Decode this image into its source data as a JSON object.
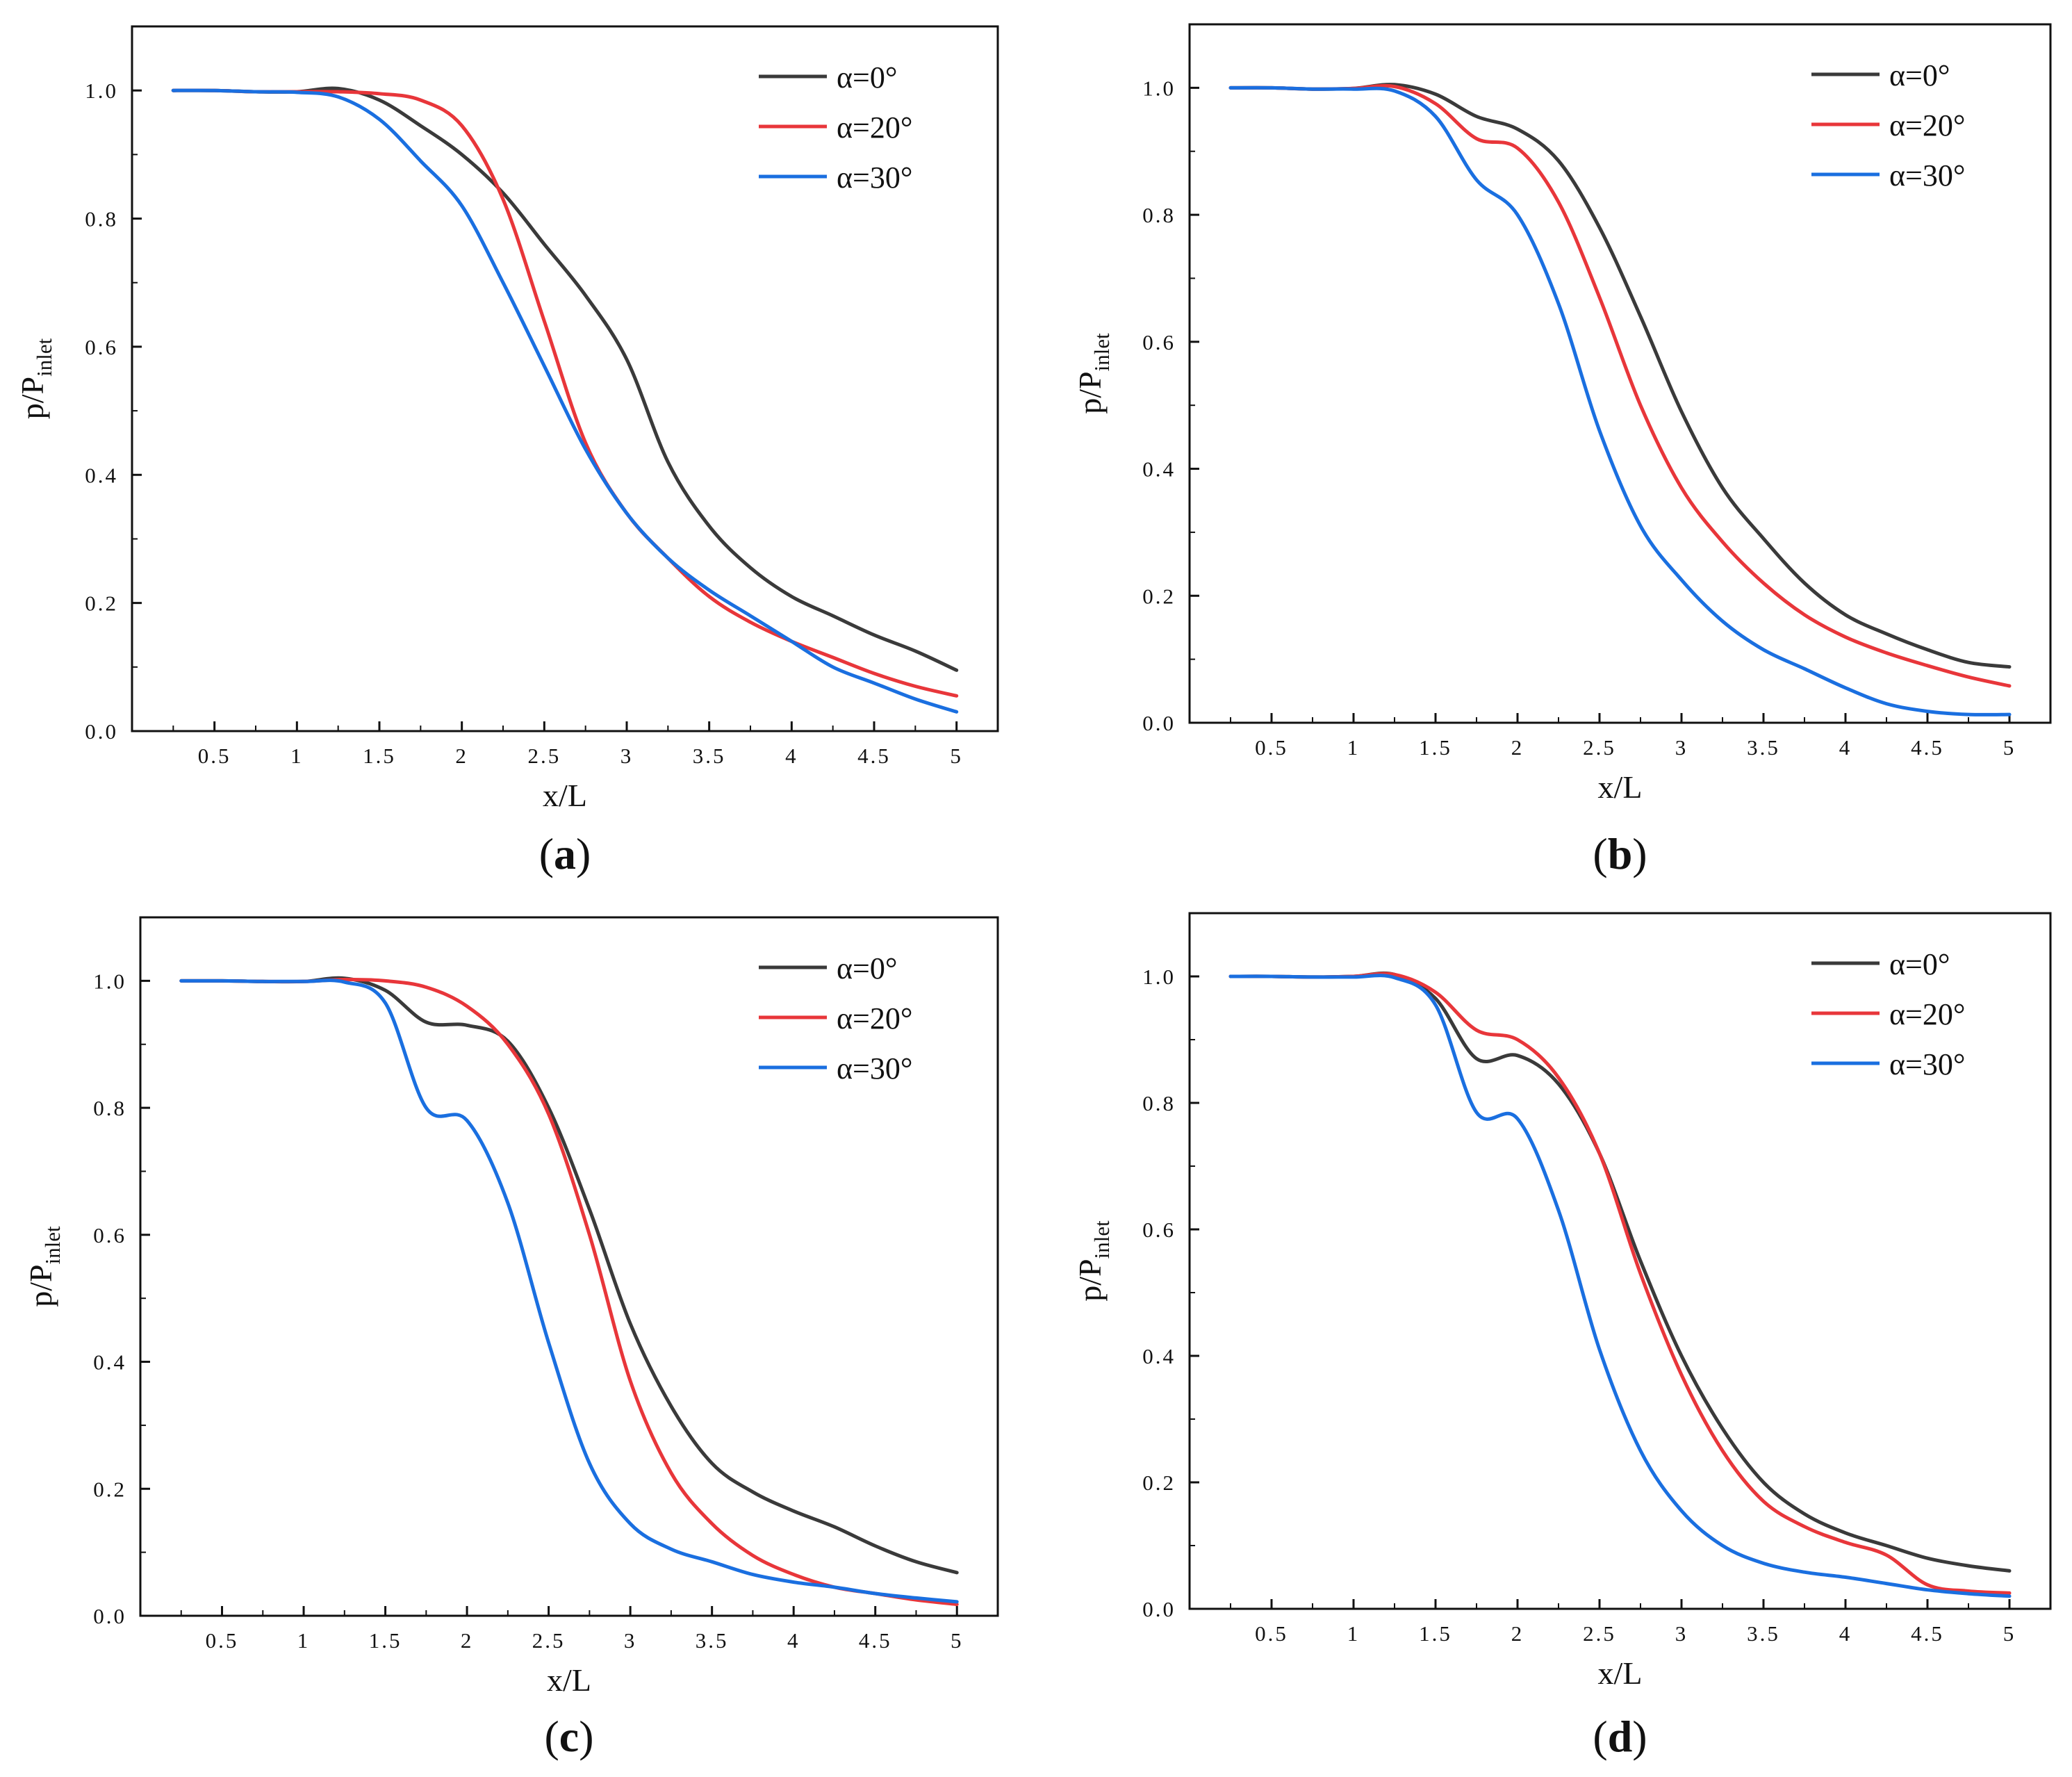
{
  "figure": {
    "panels": [
      {
        "label": "a"
      },
      {
        "label": "b"
      },
      {
        "label": "c"
      },
      {
        "label": "d"
      }
    ]
  },
  "chart_data": [
    {
      "type": "line",
      "panel": "a",
      "xlabel": "x/L",
      "ylabel": {
        "main": "p/P",
        "sub": "inlet"
      },
      "xlim": [
        0,
        5.25
      ],
      "ylim": [
        0,
        1.1
      ],
      "xticks": [
        "0.5",
        "1",
        "1.5",
        "2",
        "2.5",
        "3",
        "3.5",
        "4",
        "4.5",
        "5"
      ],
      "yticks": [
        "0.0",
        "0.2",
        "0.4",
        "0.6",
        "0.8",
        "1.0"
      ],
      "legend_position": "top-right",
      "grid": false,
      "series": [
        {
          "name": "α=0°",
          "color": "#3a3a3a",
          "x": [
            0.25,
            0.5,
            0.75,
            1.0,
            1.25,
            1.5,
            1.75,
            2.0,
            2.25,
            2.5,
            2.75,
            3.0,
            3.25,
            3.5,
            3.75,
            4.0,
            4.25,
            4.5,
            4.75,
            5.0
          ],
          "y": [
            1.0,
            1.0,
            0.998,
            0.998,
            1.003,
            0.985,
            0.945,
            0.9,
            0.84,
            0.76,
            0.68,
            0.58,
            0.42,
            0.32,
            0.255,
            0.21,
            0.18,
            0.15,
            0.125,
            0.095
          ]
        },
        {
          "name": "α=20°",
          "color": "#e8363a",
          "x": [
            0.25,
            0.5,
            0.75,
            1.0,
            1.25,
            1.5,
            1.75,
            2.0,
            2.25,
            2.5,
            2.75,
            3.0,
            3.25,
            3.5,
            3.75,
            4.0,
            4.25,
            4.5,
            4.75,
            5.0
          ],
          "y": [
            1.0,
            1.0,
            0.998,
            0.998,
            0.998,
            0.995,
            0.985,
            0.945,
            0.83,
            0.64,
            0.45,
            0.34,
            0.27,
            0.21,
            0.17,
            0.14,
            0.115,
            0.09,
            0.07,
            0.055
          ]
        },
        {
          "name": "α=30°",
          "color": "#1a6fe0",
          "x": [
            0.25,
            0.5,
            0.75,
            1.0,
            1.25,
            1.5,
            1.75,
            2.0,
            2.25,
            2.5,
            2.75,
            3.0,
            3.25,
            3.5,
            3.75,
            4.0,
            4.25,
            4.5,
            4.75,
            5.0
          ],
          "y": [
            1.0,
            1.0,
            0.998,
            0.997,
            0.99,
            0.955,
            0.89,
            0.82,
            0.7,
            0.57,
            0.44,
            0.34,
            0.27,
            0.22,
            0.18,
            0.14,
            0.1,
            0.075,
            0.05,
            0.03
          ]
        }
      ]
    },
    {
      "type": "line",
      "panel": "b",
      "xlabel": "x/L",
      "ylabel": {
        "main": "p/P",
        "sub": "inlet"
      },
      "xlim": [
        0,
        5.25
      ],
      "ylim": [
        0,
        1.1
      ],
      "xticks": [
        "0.5",
        "1",
        "1.5",
        "2",
        "2.5",
        "3",
        "3.5",
        "4",
        "4.5",
        "5"
      ],
      "yticks": [
        "0.0",
        "0.2",
        "0.4",
        "0.6",
        "0.8",
        "1.0"
      ],
      "legend_position": "top-right",
      "grid": false,
      "series": [
        {
          "name": "α=0°",
          "color": "#3a3a3a",
          "x": [
            0.25,
            0.5,
            0.75,
            1.0,
            1.25,
            1.5,
            1.75,
            2.0,
            2.25,
            2.5,
            2.75,
            3.0,
            3.25,
            3.5,
            3.75,
            4.0,
            4.25,
            4.5,
            4.75,
            5.0
          ],
          "y": [
            1.0,
            1.0,
            0.998,
            0.999,
            1.005,
            0.99,
            0.955,
            0.935,
            0.885,
            0.78,
            0.64,
            0.49,
            0.37,
            0.29,
            0.22,
            0.17,
            0.14,
            0.115,
            0.095,
            0.088
          ]
        },
        {
          "name": "α=20°",
          "color": "#e8363a",
          "x": [
            0.25,
            0.5,
            0.75,
            1.0,
            1.25,
            1.5,
            1.75,
            2.0,
            2.25,
            2.5,
            2.75,
            3.0,
            3.25,
            3.5,
            3.75,
            4.0,
            4.25,
            4.5,
            4.75,
            5.0
          ],
          "y": [
            1.0,
            1.0,
            0.998,
            0.999,
            1.002,
            0.975,
            0.92,
            0.905,
            0.82,
            0.67,
            0.5,
            0.37,
            0.285,
            0.22,
            0.17,
            0.135,
            0.11,
            0.09,
            0.072,
            0.058
          ]
        },
        {
          "name": "α=30°",
          "color": "#1a6fe0",
          "x": [
            0.25,
            0.5,
            0.75,
            1.0,
            1.25,
            1.5,
            1.75,
            2.0,
            2.25,
            2.5,
            2.75,
            3.0,
            3.25,
            3.5,
            3.75,
            4.0,
            4.25,
            4.5,
            4.75,
            5.0
          ],
          "y": [
            1.0,
            1.0,
            0.998,
            0.998,
            0.995,
            0.955,
            0.855,
            0.8,
            0.66,
            0.46,
            0.31,
            0.225,
            0.16,
            0.115,
            0.085,
            0.055,
            0.03,
            0.018,
            0.013,
            0.013
          ]
        }
      ]
    },
    {
      "type": "line",
      "panel": "c",
      "xlabel": "x/L",
      "ylabel": {
        "main": "p/P",
        "sub": "inlet"
      },
      "xlim": [
        0,
        5.25
      ],
      "ylim": [
        0,
        1.1
      ],
      "xticks": [
        "0.5",
        "1",
        "1.5",
        "2",
        "2.5",
        "3",
        "3.5",
        "4",
        "4.5",
        "5"
      ],
      "yticks": [
        "0.0",
        "0.2",
        "0.4",
        "0.6",
        "0.8",
        "1.0"
      ],
      "legend_position": "top-right",
      "grid": false,
      "series": [
        {
          "name": "α=0°",
          "color": "#3a3a3a",
          "x": [
            0.25,
            0.5,
            0.75,
            1.0,
            1.25,
            1.5,
            1.75,
            2.0,
            2.25,
            2.5,
            2.75,
            3.0,
            3.25,
            3.5,
            3.75,
            4.0,
            4.25,
            4.5,
            4.75,
            5.0
          ],
          "y": [
            1.0,
            1.0,
            0.999,
            0.999,
            1.004,
            0.985,
            0.935,
            0.93,
            0.905,
            0.8,
            0.64,
            0.46,
            0.33,
            0.24,
            0.195,
            0.165,
            0.14,
            0.11,
            0.085,
            0.068
          ]
        },
        {
          "name": "α=20°",
          "color": "#e8363a",
          "x": [
            0.25,
            0.5,
            0.75,
            1.0,
            1.25,
            1.5,
            1.75,
            2.0,
            2.25,
            2.5,
            2.75,
            3.0,
            3.25,
            3.5,
            3.75,
            4.0,
            4.25,
            4.5,
            4.75,
            5.0
          ],
          "y": [
            1.0,
            1.0,
            0.999,
            0.999,
            1.002,
            1.0,
            0.99,
            0.96,
            0.9,
            0.79,
            0.6,
            0.37,
            0.225,
            0.145,
            0.095,
            0.065,
            0.045,
            0.035,
            0.025,
            0.018
          ]
        },
        {
          "name": "α=30°",
          "color": "#1a6fe0",
          "x": [
            0.25,
            0.5,
            0.75,
            1.0,
            1.25,
            1.5,
            1.75,
            2.0,
            2.25,
            2.5,
            2.75,
            3.0,
            3.25,
            3.5,
            3.75,
            4.0,
            4.25,
            4.5,
            4.75,
            5.0
          ],
          "y": [
            1.0,
            1.0,
            0.999,
            0.999,
            0.998,
            0.965,
            0.8,
            0.78,
            0.65,
            0.43,
            0.24,
            0.145,
            0.105,
            0.085,
            0.065,
            0.053,
            0.045,
            0.035,
            0.028,
            0.022
          ]
        }
      ]
    },
    {
      "type": "line",
      "panel": "d",
      "xlabel": "x/L",
      "ylabel": {
        "main": "p/P",
        "sub": "inlet"
      },
      "xlim": [
        0,
        5.25
      ],
      "ylim": [
        0,
        1.1
      ],
      "xticks": [
        "0.5",
        "1",
        "1.5",
        "2",
        "2.5",
        "3",
        "3.5",
        "4",
        "4.5",
        "5"
      ],
      "yticks": [
        "0.0",
        "0.2",
        "0.4",
        "0.6",
        "0.8",
        "1.0"
      ],
      "legend_position": "top-right",
      "grid": false,
      "series": [
        {
          "name": "α=0°",
          "color": "#3a3a3a",
          "x": [
            0.25,
            0.5,
            0.75,
            1.0,
            1.25,
            1.5,
            1.75,
            2.0,
            2.25,
            2.5,
            2.75,
            3.0,
            3.25,
            3.5,
            3.75,
            4.0,
            4.25,
            4.5,
            4.75,
            5.0
          ],
          "y": [
            1.0,
            1.0,
            0.999,
            1.0,
            1.003,
            0.965,
            0.87,
            0.875,
            0.83,
            0.72,
            0.55,
            0.4,
            0.285,
            0.2,
            0.15,
            0.12,
            0.1,
            0.08,
            0.068,
            0.06
          ]
        },
        {
          "name": "α=20°",
          "color": "#e8363a",
          "x": [
            0.25,
            0.5,
            0.75,
            1.0,
            1.25,
            1.5,
            1.75,
            2.0,
            2.25,
            2.5,
            2.75,
            3.0,
            3.25,
            3.5,
            3.75,
            4.0,
            4.25,
            4.5,
            4.75,
            5.0
          ],
          "y": [
            1.0,
            1.0,
            0.999,
            1.0,
            1.003,
            0.975,
            0.915,
            0.9,
            0.84,
            0.72,
            0.53,
            0.37,
            0.25,
            0.17,
            0.13,
            0.105,
            0.085,
            0.038,
            0.028,
            0.025
          ]
        },
        {
          "name": "α=30°",
          "color": "#1a6fe0",
          "x": [
            0.25,
            0.5,
            0.75,
            1.0,
            1.25,
            1.5,
            1.75,
            2.0,
            2.25,
            2.5,
            2.75,
            3.0,
            3.25,
            3.5,
            3.75,
            4.0,
            4.25,
            4.5,
            4.75,
            5.0
          ],
          "y": [
            1.0,
            1.0,
            0.999,
            0.999,
            0.998,
            0.955,
            0.785,
            0.775,
            0.63,
            0.41,
            0.25,
            0.155,
            0.1,
            0.072,
            0.058,
            0.05,
            0.04,
            0.03,
            0.024,
            0.02
          ]
        }
      ]
    }
  ]
}
